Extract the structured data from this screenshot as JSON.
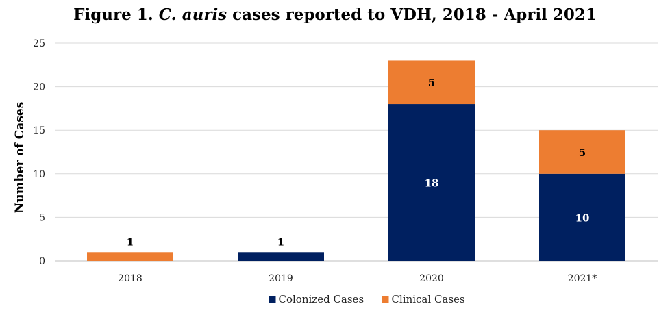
{
  "title_parts": {
    "prefix": "Figure 1. ",
    "italic": "C. auris",
    "suffix": " cases reported to VDH, 2018 - April 2021"
  },
  "chart_data": {
    "type": "bar",
    "stacked": true,
    "title": "Figure 1. C. auris cases reported to VDH, 2018 - April 2021",
    "categories": [
      "2018",
      "2019",
      "2020",
      "2021*"
    ],
    "series": [
      {
        "name": "Colonized Cases",
        "values": [
          0,
          1,
          18,
          10
        ],
        "color": "#002060"
      },
      {
        "name": "Clinical Cases",
        "values": [
          1,
          0,
          5,
          5
        ],
        "color": "#ED7D31"
      }
    ],
    "data_labels": [
      {
        "category": "2018",
        "series": "Clinical Cases",
        "text": "1"
      },
      {
        "category": "2019",
        "series": "Colonized Cases",
        "text": "1"
      },
      {
        "category": "2020",
        "series": "Colonized Cases",
        "text": "18"
      },
      {
        "category": "2020",
        "series": "Clinical Cases",
        "text": "5"
      },
      {
        "category": "2021*",
        "series": "Colonized Cases",
        "text": "10"
      },
      {
        "category": "2021*",
        "series": "Clinical Cases",
        "text": "5"
      }
    ],
    "xlabel": "",
    "ylabel": "Number of Cases",
    "ylim": [
      0,
      25
    ],
    "yticks": [
      0,
      5,
      10,
      15,
      20,
      25
    ],
    "grid": true,
    "legend_position": "bottom"
  }
}
